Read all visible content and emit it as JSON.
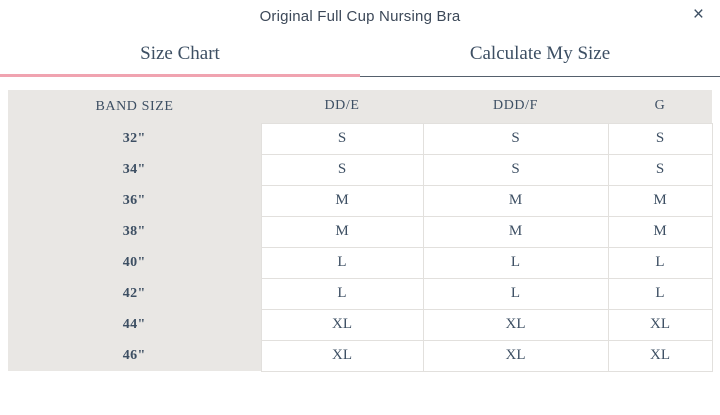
{
  "modal": {
    "title": "Original Full Cup Nursing Bra",
    "close_glyph": "×"
  },
  "tabs": [
    {
      "label": "Size Chart",
      "active": true
    },
    {
      "label": "Calculate My Size",
      "active": false
    }
  ],
  "size_chart": {
    "columns": [
      "BAND SIZE",
      "DD/E",
      "DDD/F",
      "G"
    ],
    "rows": [
      {
        "band": "32\"",
        "values": [
          "S",
          "S",
          "S"
        ]
      },
      {
        "band": "34\"",
        "values": [
          "S",
          "S",
          "S"
        ]
      },
      {
        "band": "36\"",
        "values": [
          "M",
          "M",
          "M"
        ]
      },
      {
        "band": "38\"",
        "values": [
          "M",
          "M",
          "M"
        ]
      },
      {
        "band": "40\"",
        "values": [
          "L",
          "L",
          "L"
        ]
      },
      {
        "band": "42\"",
        "values": [
          "L",
          "L",
          "L"
        ]
      },
      {
        "band": "44\"",
        "values": [
          "XL",
          "XL",
          "XL"
        ]
      },
      {
        "band": "46\"",
        "values": [
          "XL",
          "XL",
          "XL"
        ]
      }
    ]
  },
  "colors": {
    "accent_pink": "#f0a3b0",
    "text": "#3d4f63",
    "header_bg": "#e9e7e4",
    "cell_border": "#e2e0dd",
    "inactive_tab_line": "#55606c"
  }
}
